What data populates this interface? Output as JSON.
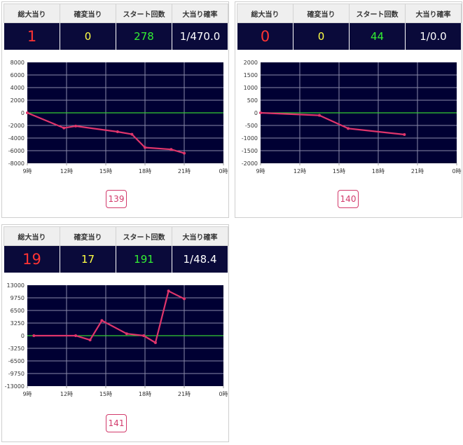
{
  "headers": [
    "総大当り",
    "確変当り",
    "スタート回数",
    "大当り確率"
  ],
  "colors": {
    "plot_bg": "#000033",
    "grid": "#8a8aa8",
    "zero_line": "#33cc33",
    "series_line": "#e0356b"
  },
  "machines": [
    {
      "machine_no": "139",
      "stats": {
        "total_hits": "1",
        "kakuhen_hits": "0",
        "start_count": "278",
        "hit_probability": "1/470.0"
      }
    },
    {
      "machine_no": "140",
      "stats": {
        "total_hits": "0",
        "kakuhen_hits": "0",
        "start_count": "44",
        "hit_probability": "1/0.0"
      }
    },
    {
      "machine_no": "141",
      "stats": {
        "total_hits": "19",
        "kakuhen_hits": "17",
        "start_count": "191",
        "hit_probability": "1/48.4"
      }
    }
  ],
  "chart_data": [
    {
      "type": "line",
      "x_ticks": [
        "9時",
        "12時",
        "15時",
        "18時",
        "21時",
        "0時"
      ],
      "y_ticks": [
        "8000",
        "6000",
        "4000",
        "2000",
        "0",
        "-2000",
        "-4000",
        "-6000",
        "-8000"
      ],
      "xlim": [
        9,
        24
      ],
      "ylim": [
        -8000,
        8000
      ],
      "grid": true,
      "x": [
        9.0,
        11.8,
        12.7,
        15.9,
        17.0,
        18.0,
        20.0,
        21.0
      ],
      "y": [
        0,
        -2400,
        -2100,
        -3000,
        -3400,
        -5500,
        -5800,
        -6400
      ]
    },
    {
      "type": "line",
      "x_ticks": [
        "9時",
        "12時",
        "15時",
        "18時",
        "21時",
        "0時"
      ],
      "y_ticks": [
        "2000",
        "1500",
        "1000",
        "500",
        "0",
        "-500",
        "-1000",
        "-1500",
        "-2000"
      ],
      "xlim": [
        9,
        24
      ],
      "ylim": [
        -2000,
        2000
      ],
      "grid": true,
      "x": [
        9.0,
        13.5,
        15.7,
        20.0
      ],
      "y": [
        0,
        -100,
        -620,
        -860
      ]
    },
    {
      "type": "line",
      "x_ticks": [
        "9時",
        "12時",
        "15時",
        "18時",
        "21時",
        "0時"
      ],
      "y_ticks": [
        "13000",
        "9750",
        "6500",
        "3250",
        "0",
        "-3250",
        "-6500",
        "-9750",
        "-13000"
      ],
      "xlim": [
        9,
        24
      ],
      "ylim": [
        -13000,
        13000
      ],
      "grid": true,
      "x": [
        9.5,
        12.7,
        13.8,
        14.7,
        16.6,
        17.9,
        18.8,
        19.8,
        21.0
      ],
      "y": [
        0,
        0,
        -1100,
        3900,
        500,
        0,
        -1800,
        11500,
        9500
      ]
    }
  ]
}
